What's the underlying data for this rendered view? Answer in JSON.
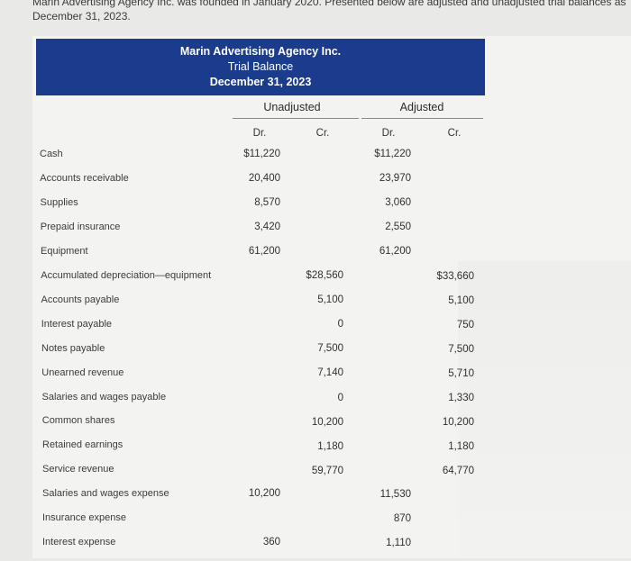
{
  "intro": {
    "line1": "Marin Advertising Agency Inc. was founded in January 2020. Presented below are adjusted and unadjusted trial balances as at",
    "line2": "December 31, 2023."
  },
  "header": {
    "company": "Marin Advertising Agency Inc.",
    "title": "Trial Balance",
    "date": "December 31, 2023"
  },
  "groups": {
    "unadjusted": "Unadjusted",
    "adjusted": "Adjusted"
  },
  "columns": {
    "u_dr": "Dr.",
    "u_cr": "Cr.",
    "a_dr": "Dr.",
    "a_cr": "Cr."
  },
  "rows": [
    {
      "account": "Cash",
      "u_dr": "$11,220",
      "u_cr": "",
      "a_dr": "$11,220",
      "a_cr": ""
    },
    {
      "account": "Accounts receivable",
      "u_dr": "20,400",
      "u_cr": "",
      "a_dr": "23,970",
      "a_cr": ""
    },
    {
      "account": "Supplies",
      "u_dr": "8,570",
      "u_cr": "",
      "a_dr": "3,060",
      "a_cr": ""
    },
    {
      "account": "Prepaid insurance",
      "u_dr": "3,420",
      "u_cr": "",
      "a_dr": "2,550",
      "a_cr": ""
    },
    {
      "account": "Equipment",
      "u_dr": "61,200",
      "u_cr": "",
      "a_dr": "61,200",
      "a_cr": ""
    },
    {
      "account": "Accumulated depreciation—equipment",
      "u_dr": "",
      "u_cr": "$28,560",
      "a_dr": "",
      "a_cr": "$33,660"
    },
    {
      "account": "Accounts payable",
      "u_dr": "",
      "u_cr": "5,100",
      "a_dr": "",
      "a_cr": "5,100"
    },
    {
      "account": "Interest payable",
      "u_dr": "",
      "u_cr": "0",
      "a_dr": "",
      "a_cr": "750"
    },
    {
      "account": "Notes payable",
      "u_dr": "",
      "u_cr": "7,500",
      "a_dr": "",
      "a_cr": "7,500"
    },
    {
      "account": "Unearned revenue",
      "u_dr": "",
      "u_cr": "7,140",
      "a_dr": "",
      "a_cr": "5,710"
    },
    {
      "account": "Salaries and wages payable",
      "u_dr": "",
      "u_cr": "0",
      "a_dr": "",
      "a_cr": "1,330"
    },
    {
      "account": "Common shares",
      "u_dr": "",
      "u_cr": "10,200",
      "a_dr": "",
      "a_cr": "10,200"
    },
    {
      "account": "Retained earnings",
      "u_dr": "",
      "u_cr": "1,180",
      "a_dr": "",
      "a_cr": "1,180"
    },
    {
      "account": "Service revenue",
      "u_dr": "",
      "u_cr": "59,770",
      "a_dr": "",
      "a_cr": "64,770"
    },
    {
      "account": "Salaries and wages expense",
      "u_dr": "10,200",
      "u_cr": "",
      "a_dr": "11,530",
      "a_cr": ""
    },
    {
      "account": "Insurance expense",
      "u_dr": "",
      "u_cr": "",
      "a_dr": "870",
      "a_cr": ""
    },
    {
      "account": "Interest expense",
      "u_dr": "360",
      "u_cr": "",
      "a_dr": "1,110",
      "a_cr": ""
    }
  ]
}
